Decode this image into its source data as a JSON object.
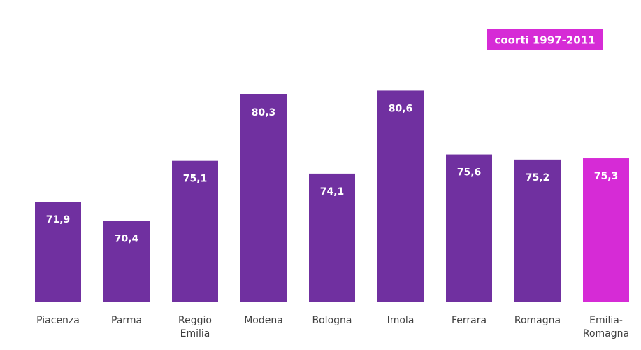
{
  "chart_data": {
    "type": "bar",
    "categories": [
      "Piacenza",
      "Parma",
      "Reggio Emilia",
      "Modena",
      "Bologna",
      "Imola",
      "Ferrara",
      "Romagna",
      "Emilia-Romagna"
    ],
    "values": [
      71.9,
      70.4,
      75.1,
      80.3,
      74.1,
      80.6,
      75.6,
      75.2,
      75.3
    ],
    "value_labels": [
      "71,9",
      "70,4",
      "75,1",
      "80,3",
      "74,1",
      "80,6",
      "75,6",
      "75,2",
      "75,3"
    ],
    "colors": [
      "#7030a0",
      "#7030a0",
      "#7030a0",
      "#7030a0",
      "#7030a0",
      "#7030a0",
      "#7030a0",
      "#7030a0",
      "#d62bd6"
    ],
    "annotation": "coorti 1997-2011",
    "annotation_color": "#d62bd6",
    "ylim": [
      64,
      86
    ]
  }
}
